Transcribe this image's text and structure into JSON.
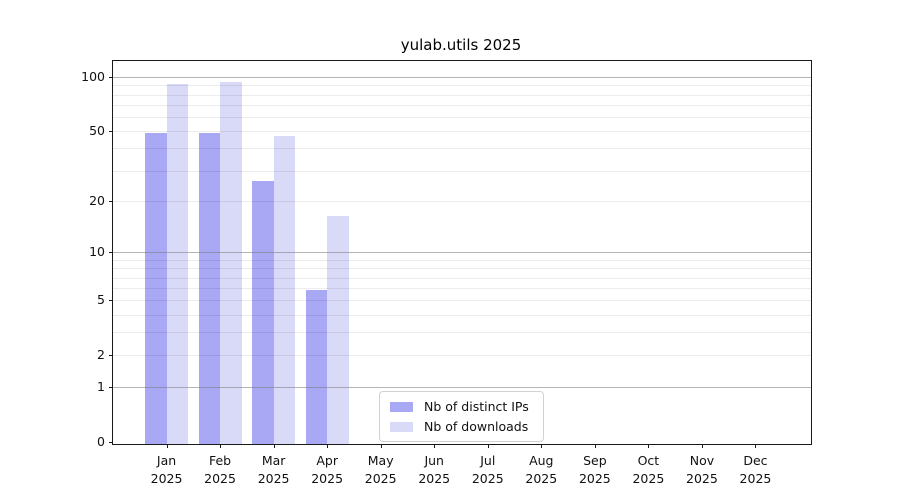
{
  "chart_data": {
    "type": "bar",
    "title": "yulab.utils 2025",
    "categories": [
      "Jan",
      "Feb",
      "Mar",
      "Apr",
      "May",
      "Jun",
      "Jul",
      "Aug",
      "Sep",
      "Oct",
      "Nov",
      "Dec"
    ],
    "year": "2025",
    "series": [
      {
        "name": "Nb of distinct IPs",
        "color": "#a8a8f5",
        "values": [
          50,
          50,
          27,
          6,
          null,
          null,
          null,
          null,
          null,
          null,
          null,
          null
        ]
      },
      {
        "name": "Nb of downloads",
        "color": "#d9d9f8",
        "values": [
          94,
          97,
          48,
          17,
          null,
          null,
          null,
          null,
          null,
          null,
          null,
          null
        ]
      }
    ],
    "yscale": "log1p",
    "ylim": [
      0,
      123
    ],
    "yticks": [
      0,
      1,
      2,
      5,
      10,
      20,
      50,
      100
    ],
    "grid": "on",
    "grid_major_values": [
      1,
      10,
      100
    ],
    "grid_minor_values": [
      2,
      3,
      4,
      5,
      6,
      7,
      8,
      9,
      20,
      30,
      40,
      50,
      60,
      70,
      80,
      90
    ],
    "legend_position": "lower center"
  }
}
